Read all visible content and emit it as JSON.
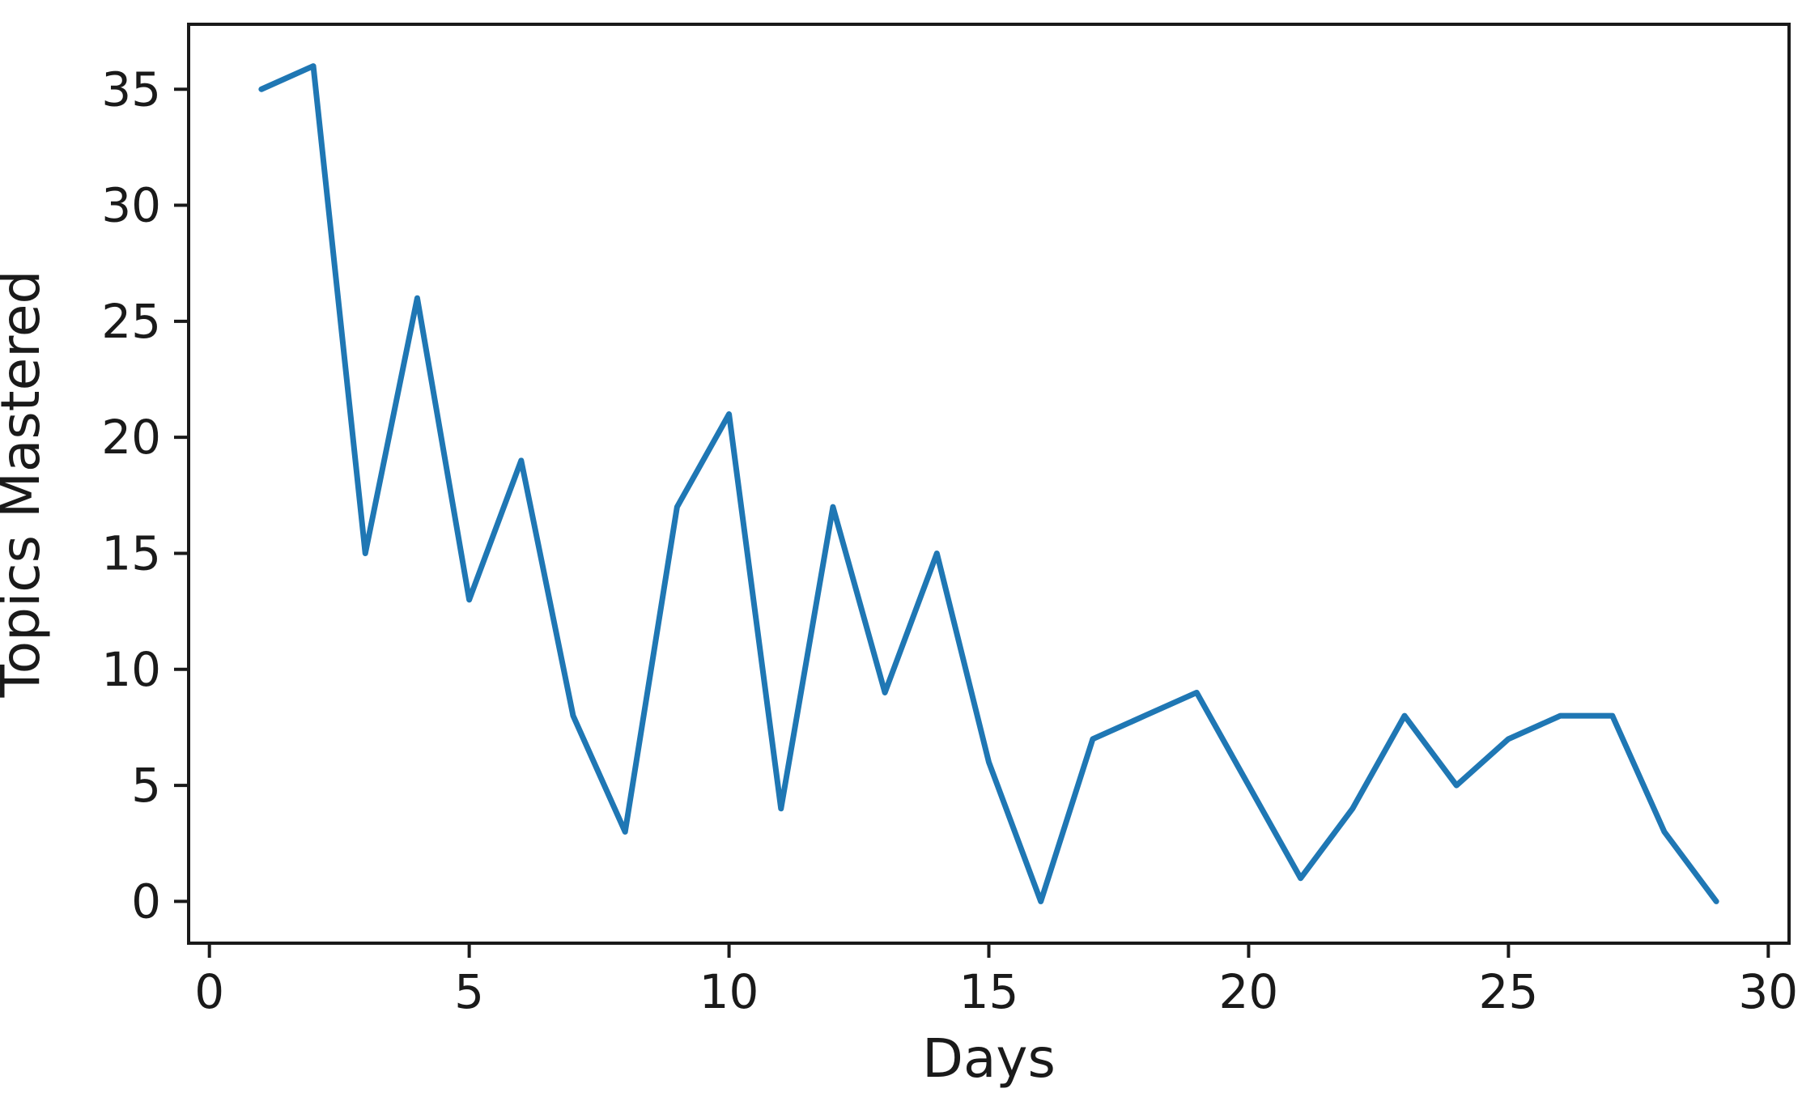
{
  "window": {
    "background": "#ffffff"
  },
  "chart_data": {
    "type": "line",
    "title": "",
    "xlabel": "Days",
    "ylabel": "Topics Mastered",
    "x": [
      1,
      2,
      3,
      4,
      5,
      6,
      7,
      8,
      9,
      10,
      11,
      12,
      13,
      14,
      15,
      16,
      17,
      18,
      19,
      20,
      21,
      22,
      23,
      24,
      25,
      26,
      27,
      28,
      29
    ],
    "series": [
      {
        "name": "Topics Mastered",
        "color": "#1f77b4",
        "values": [
          35,
          36,
          15,
          26,
          13,
          19,
          8,
          3,
          17,
          21,
          4,
          17,
          9,
          15,
          6,
          0,
          7,
          8,
          9,
          5,
          1,
          4,
          8,
          5,
          7,
          8,
          8,
          3,
          0
        ]
      }
    ],
    "xticks": {
      "values": [
        0,
        5,
        10,
        15,
        20,
        25,
        30
      ],
      "labels": [
        "0",
        "5",
        "10",
        "15",
        "20",
        "25",
        "30"
      ]
    },
    "yticks": {
      "values": [
        0,
        5,
        10,
        15,
        20,
        25,
        30,
        35
      ],
      "labels": [
        "0",
        "5",
        "10",
        "15",
        "20",
        "25",
        "30",
        "35"
      ]
    },
    "xlim": [
      -0.4,
      30.4
    ],
    "ylim": [
      -1.8,
      37.8
    ],
    "grid": false,
    "legend": "none",
    "axis_color": "#1a1a1a",
    "text_color": "#1a1a1a",
    "line_color": "#1f77b4"
  }
}
